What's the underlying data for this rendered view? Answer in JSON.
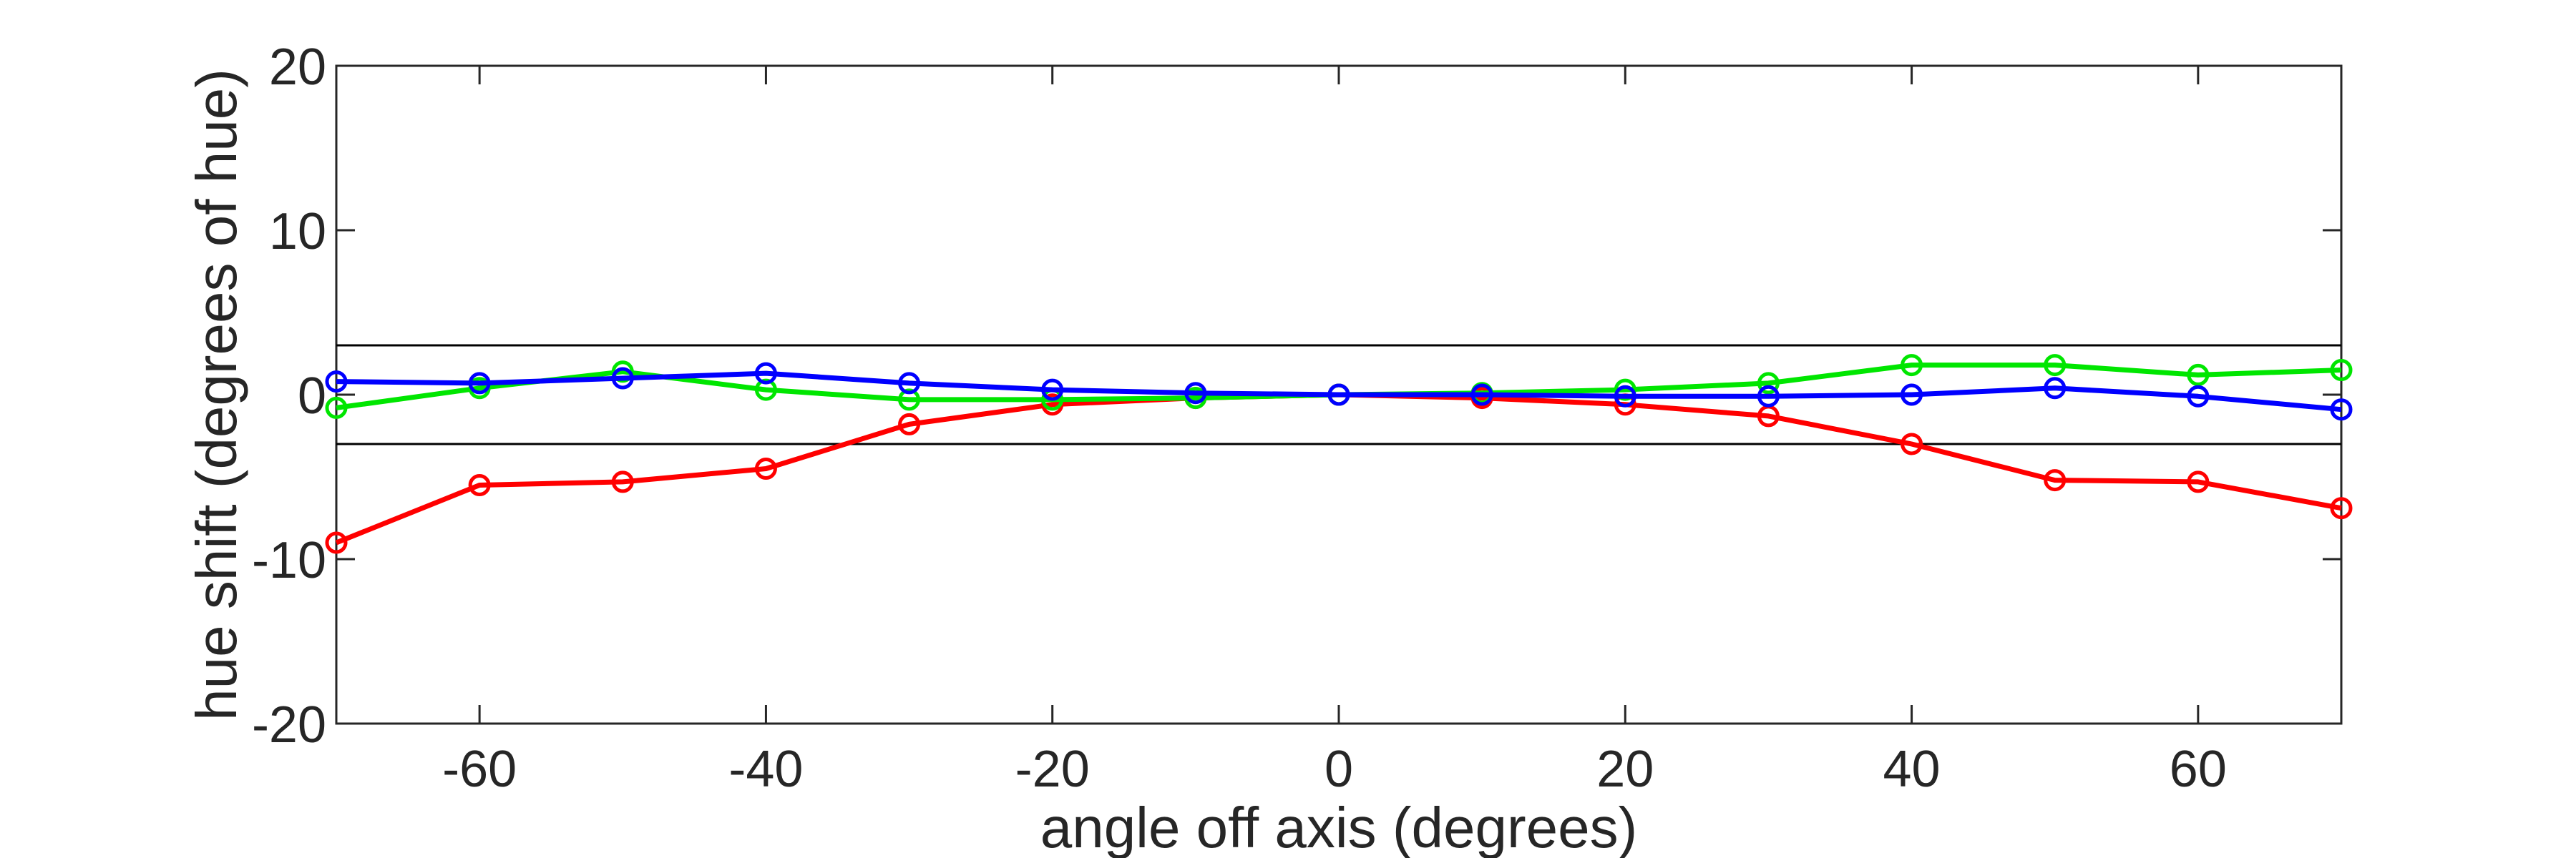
{
  "chart_data": {
    "type": "line",
    "title": "",
    "xlabel": "angle off axis (degrees)",
    "ylabel": "hue shift (degrees of hue)",
    "xlim": [
      -70,
      70
    ],
    "ylim": [
      -20,
      20
    ],
    "xticks": [
      -60,
      -40,
      -20,
      0,
      20,
      40,
      60
    ],
    "yticks": [
      -20,
      -10,
      0,
      10,
      20
    ],
    "xtick_labels": [
      "-60",
      "-40",
      "-20",
      "0",
      "20",
      "40",
      "60"
    ],
    "ytick_labels": [
      "-20",
      "-10",
      "0",
      "10",
      "20"
    ],
    "grid": false,
    "legend": "none",
    "reference_lines": [
      {
        "y": 3,
        "color": "#000000"
      },
      {
        "y": -3,
        "color": "#000000"
      }
    ],
    "x": [
      -70,
      -60,
      -50,
      -40,
      -30,
      -20,
      -10,
      0,
      10,
      20,
      30,
      40,
      50,
      60,
      70
    ],
    "series": [
      {
        "color": "#ff0000",
        "values": [
          -9.0,
          -5.5,
          -5.3,
          -4.5,
          -1.8,
          -0.6,
          -0.2,
          0.0,
          -0.2,
          -0.6,
          -1.3,
          -3.0,
          -5.2,
          -5.3,
          -6.9
        ]
      },
      {
        "color": "#00e600",
        "values": [
          -0.8,
          0.4,
          1.4,
          0.3,
          -0.3,
          -0.3,
          -0.2,
          0.0,
          0.1,
          0.3,
          0.7,
          1.8,
          1.8,
          1.2,
          1.5
        ]
      },
      {
        "color": "#0000ff",
        "values": [
          0.8,
          0.7,
          1.0,
          1.3,
          0.7,
          0.3,
          0.1,
          0.0,
          0.0,
          -0.1,
          -0.1,
          0.0,
          0.4,
          -0.1,
          -0.9
        ]
      }
    ]
  }
}
